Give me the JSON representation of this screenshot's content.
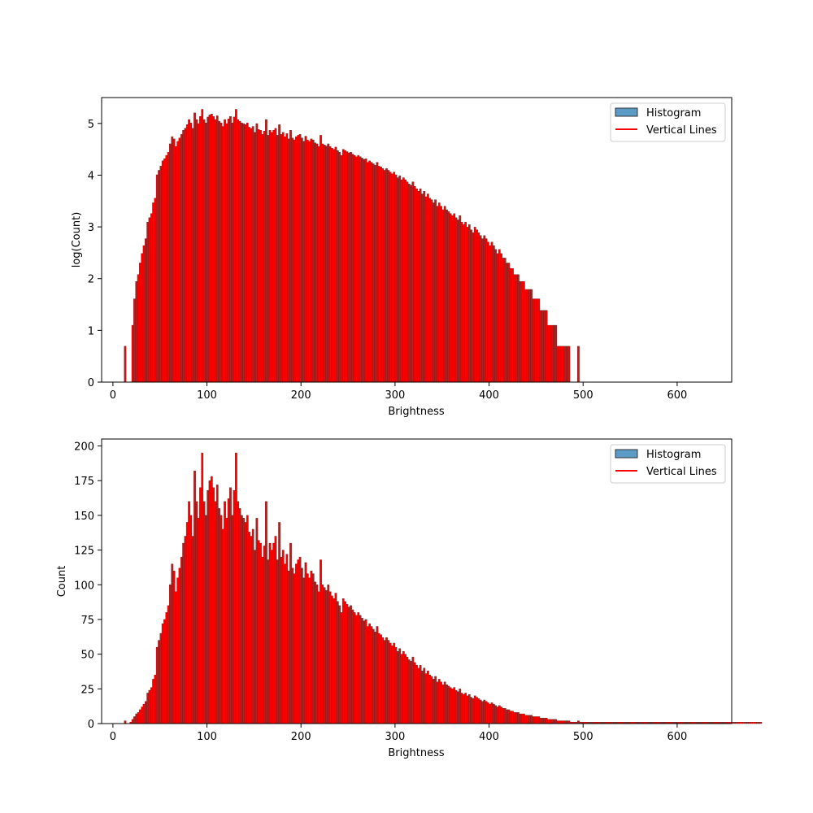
{
  "colors": {
    "background": "#ffffff",
    "histogram_face": "#5b9bc8",
    "histogram_edge": "#333333",
    "vertical_lines": "#ff0000"
  },
  "chart_data": [
    {
      "type": "bar",
      "xlabel": "Brightness",
      "ylabel": "log(Count)",
      "xlim": [
        -12,
        658
      ],
      "ylim": [
        0,
        5.5
      ],
      "xticks": [
        0,
        100,
        200,
        300,
        400,
        500,
        600
      ],
      "yticks": [
        0,
        1,
        2,
        3,
        4,
        5
      ],
      "grid": false,
      "legend_position": "top-right",
      "legend": [
        {
          "label": "Histogram",
          "kind": "patch"
        },
        {
          "label": "Vertical Lines",
          "kind": "line"
        }
      ],
      "series_rule": "values are the natural log of the counts shown in the second plot",
      "bin_start": 12,
      "bin_width": 2
    },
    {
      "type": "bar",
      "xlabel": "Brightness",
      "ylabel": "Count",
      "xlim": [
        -12,
        658
      ],
      "ylim": [
        0,
        205
      ],
      "xticks": [
        0,
        100,
        200,
        300,
        400,
        500,
        600
      ],
      "yticks": [
        0,
        25,
        50,
        75,
        100,
        125,
        150,
        175,
        200
      ],
      "grid": false,
      "legend_position": "top-right",
      "legend": [
        {
          "label": "Histogram",
          "kind": "patch"
        },
        {
          "label": "Vertical Lines",
          "kind": "line"
        }
      ],
      "bin_start": 12,
      "bin_width": 2,
      "values": [
        2,
        0,
        0,
        1,
        3,
        5,
        7,
        8,
        10,
        12,
        14,
        16,
        22,
        24,
        26,
        32,
        35,
        55,
        60,
        65,
        72,
        75,
        80,
        85,
        100,
        115,
        110,
        95,
        105,
        112,
        120,
        130,
        135,
        145,
        160,
        150,
        135,
        182,
        160,
        148,
        170,
        195,
        160,
        150,
        168,
        175,
        178,
        170,
        160,
        172,
        155,
        150,
        140,
        160,
        148,
        162,
        170,
        150,
        168,
        195,
        160,
        155,
        150,
        148,
        145,
        150,
        138,
        135,
        140,
        125,
        148,
        132,
        130,
        120,
        128,
        160,
        118,
        130,
        125,
        130,
        135,
        118,
        145,
        120,
        125,
        115,
        122,
        110,
        130,
        112,
        108,
        115,
        118,
        120,
        112,
        105,
        116,
        108,
        105,
        110,
        108,
        102,
        100,
        95,
        118,
        100,
        98,
        96,
        100,
        95,
        92,
        90,
        94,
        88,
        85,
        80,
        90,
        88,
        86,
        84,
        85,
        82,
        80,
        78,
        80,
        78,
        76,
        74,
        75,
        70,
        72,
        70,
        68,
        66,
        70,
        65,
        64,
        62,
        60,
        62,
        60,
        58,
        56,
        58,
        55,
        52,
        54,
        50,
        52,
        50,
        48,
        46,
        45,
        48,
        44,
        42,
        40,
        42,
        38,
        40,
        36,
        38,
        35,
        34,
        32,
        34,
        30,
        32,
        30,
        28,
        30,
        28,
        27,
        26,
        25,
        26,
        24,
        23,
        25,
        22,
        21,
        22,
        20,
        21,
        19,
        18,
        20,
        19,
        18,
        17,
        16,
        17,
        16,
        15,
        14,
        15,
        14,
        13,
        12,
        13,
        12,
        11,
        11,
        10,
        10,
        9,
        9,
        8,
        8,
        8,
        7,
        7,
        7,
        6,
        6,
        6,
        6,
        5,
        5,
        5,
        5,
        4,
        4,
        4,
        4,
        3,
        3,
        3,
        3,
        3,
        2,
        2,
        2,
        2,
        2,
        2,
        2,
        1,
        1,
        1,
        1,
        2,
        1,
        1,
        1,
        1,
        1,
        1,
        1,
        1,
        1,
        1,
        1,
        1,
        1,
        1,
        1,
        1,
        1,
        1,
        1,
        1,
        1,
        1,
        1,
        1,
        1,
        1,
        1,
        1,
        1,
        1,
        1,
        1,
        1,
        1,
        1,
        1,
        1,
        1,
        1,
        1,
        1,
        1,
        1,
        1,
        1,
        1,
        1,
        1,
        1,
        1,
        1,
        1,
        1,
        1,
        1,
        1,
        1,
        1,
        1,
        1,
        1,
        1,
        1,
        1,
        1,
        1,
        1,
        1,
        1,
        1,
        1,
        1,
        1,
        1,
        1,
        1,
        1,
        1,
        1,
        1,
        1,
        1,
        1,
        1,
        1,
        1,
        1,
        1,
        1,
        1,
        1,
        1,
        1,
        1,
        1,
        1,
        1
      ]
    }
  ]
}
